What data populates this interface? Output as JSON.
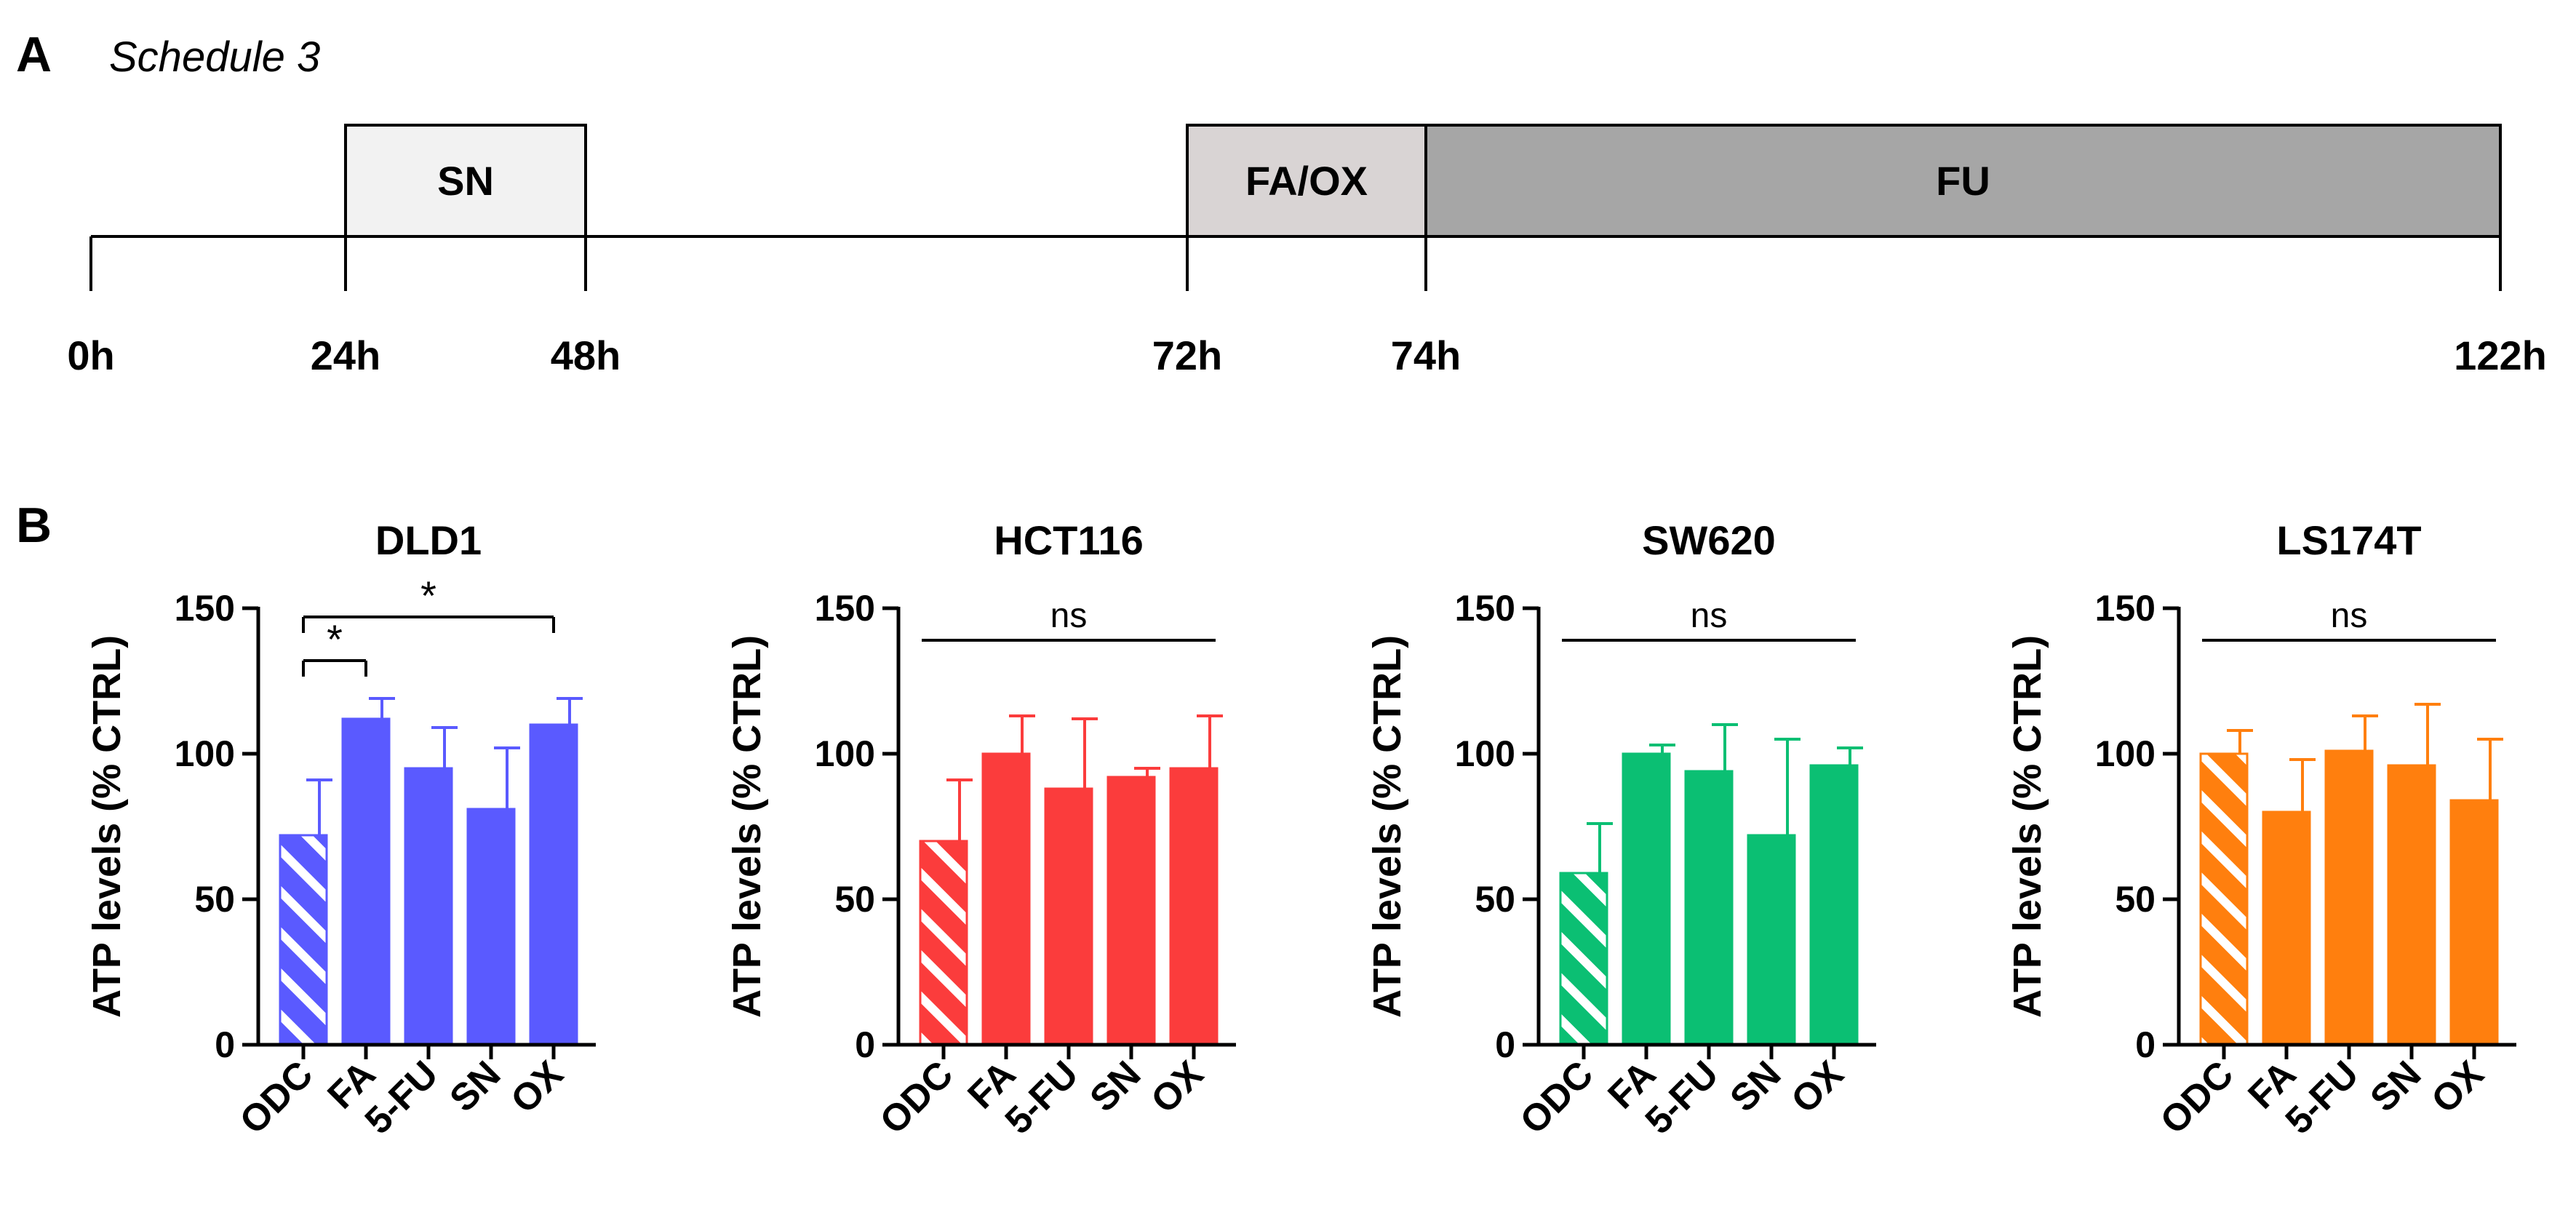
{
  "panels": {
    "a_letter": "A",
    "b_letter": "B"
  },
  "schedule": {
    "title": "Schedule 3",
    "unit": "h",
    "phases": [
      {
        "label": "SN",
        "start": 24,
        "end": 48,
        "color": "#f2f2f2"
      },
      {
        "label": "FA/OX",
        "start": 72,
        "end": 74,
        "color": "#d9d4d4"
      },
      {
        "label": "FU",
        "start": 74,
        "end": 122,
        "color": "#a6a6a6"
      }
    ],
    "time_labels": [
      "0h",
      "24h",
      "48h",
      "72h",
      "74h",
      "122h"
    ]
  },
  "chart_data": [
    {
      "type": "bar",
      "title": "DLD1",
      "ylabel": "ATP levels (% CTRL)",
      "xlabel": "",
      "ylim": [
        0,
        150
      ],
      "yticks": [
        "0",
        "50",
        "100",
        "150"
      ],
      "categories": [
        "ODC",
        "FA",
        "5-FU",
        "SN",
        "OX"
      ],
      "values": [
        72,
        112,
        95,
        81,
        110
      ],
      "errors": [
        19,
        7,
        14,
        21,
        9
      ],
      "color": "#5a5aff",
      "hatched_first": true,
      "annotations": [
        {
          "from": 0,
          "to": 1,
          "label": "*",
          "y": 132
        },
        {
          "from": 0,
          "to": 4,
          "label": "*",
          "y": 147
        }
      ]
    },
    {
      "type": "bar",
      "title": "HCT116",
      "ylabel": "ATP levels (% CTRL)",
      "xlabel": "",
      "ylim": [
        0,
        150
      ],
      "yticks": [
        "0",
        "50",
        "100",
        "150"
      ],
      "categories": [
        "ODC",
        "FA",
        "5-FU",
        "SN",
        "OX"
      ],
      "values": [
        70,
        100,
        88,
        92,
        95
      ],
      "errors": [
        21,
        13,
        24,
        3,
        18
      ],
      "color": "#fb3c3c",
      "hatched_first": true,
      "annotations": [
        {
          "from": 0,
          "to": 4,
          "label": "ns",
          "y": 139
        }
      ]
    },
    {
      "type": "bar",
      "title": "SW620",
      "ylabel": "ATP levels (% CTRL)",
      "xlabel": "",
      "ylim": [
        0,
        150
      ],
      "yticks": [
        "0",
        "50",
        "100",
        "150"
      ],
      "categories": [
        "ODC",
        "FA",
        "5-FU",
        "SN",
        "OX"
      ],
      "values": [
        59,
        100,
        94,
        72,
        96
      ],
      "errors": [
        17,
        3,
        16,
        33,
        6
      ],
      "color": "#0bbf73",
      "hatched_first": true,
      "annotations": [
        {
          "from": 0,
          "to": 4,
          "label": "ns",
          "y": 139
        }
      ]
    },
    {
      "type": "bar",
      "title": "LS174T",
      "ylabel": "ATP levels (% CTRL)",
      "xlabel": "",
      "ylim": [
        0,
        150
      ],
      "yticks": [
        "0",
        "50",
        "100",
        "150"
      ],
      "categories": [
        "ODC",
        "FA",
        "5-FU",
        "SN",
        "OX"
      ],
      "values": [
        100,
        80,
        101,
        96,
        84
      ],
      "errors": [
        8,
        18,
        12,
        21,
        21
      ],
      "color": "#ff7f0e",
      "hatched_first": true,
      "annotations": [
        {
          "from": 0,
          "to": 4,
          "label": "ns",
          "y": 139
        }
      ]
    }
  ]
}
